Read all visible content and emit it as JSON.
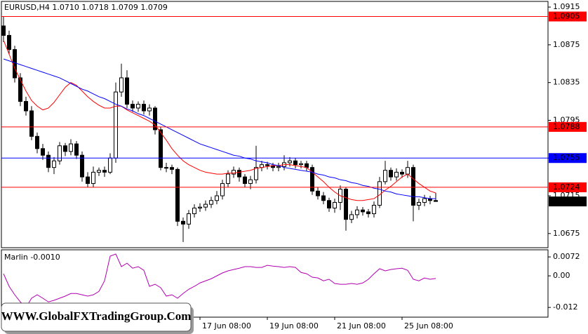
{
  "chart_data": [
    {
      "type": "candlestick",
      "title": "EURUSD,H4  1.0710 1.0718 1.0709 1.0709",
      "categories": [
        null,
        null,
        null,
        null,
        null,
        null,
        null,
        null,
        null,
        null,
        null,
        null,
        null,
        null,
        null,
        null,
        null,
        null,
        null,
        null,
        null,
        null,
        null,
        null,
        null,
        null,
        null,
        null,
        null,
        null,
        null,
        null,
        null,
        null,
        null,
        "17 Jun 08:00",
        null,
        null,
        null,
        null,
        null,
        null,
        null,
        null,
        null,
        null,
        null,
        "19 Jun 08:00",
        null,
        null,
        null,
        null,
        null,
        null,
        null,
        null,
        null,
        null,
        null,
        "21 Jun 08:00",
        null,
        null,
        null,
        null,
        null,
        null,
        null,
        null,
        null,
        null,
        null,
        "25 Jun 08:00",
        null,
        null,
        null,
        null,
        null,
        null
      ],
      "open": [
        1.0895,
        1.0885,
        1.087,
        1.084,
        1.0815,
        1.0805,
        1.0778,
        1.0765,
        1.0758,
        1.0745,
        1.0752,
        1.0768,
        1.0762,
        1.077,
        1.0758,
        1.0735,
        1.0728,
        1.074,
        1.0742,
        1.074,
        1.0755,
        1.0825,
        1.084,
        1.0812,
        1.0808,
        1.0812,
        1.0805,
        1.0808,
        1.0785,
        1.0745,
        1.0745,
        1.0743,
        1.0688,
        1.0685,
        1.0696,
        1.0702,
        1.0703,
        1.0706,
        1.071,
        1.0715,
        1.0728,
        1.0738,
        1.0742,
        1.0735,
        1.0728,
        1.0732,
        1.0745,
        1.0748,
        1.0747,
        1.0745,
        1.0746,
        1.075,
        1.0752,
        1.0748,
        1.0749,
        1.0745,
        1.072,
        1.0715,
        1.071,
        1.0702,
        1.0708,
        1.0722,
        1.069,
        1.0695,
        1.07,
        1.0698,
        1.0696,
        1.0705,
        1.073,
        1.0742,
        1.0735,
        1.074,
        1.0738,
        1.0745,
        1.0705,
        1.0708,
        1.0712,
        1.071
      ],
      "high": [
        1.0905,
        1.089,
        1.0874,
        1.0845,
        1.082,
        1.081,
        1.0782,
        1.077,
        1.0762,
        1.0756,
        1.0772,
        1.0771,
        1.0775,
        1.0773,
        1.0762,
        1.074,
        1.0746,
        1.0745,
        1.0746,
        1.076,
        1.0835,
        1.0855,
        1.0848,
        1.0816,
        1.0815,
        1.0816,
        1.0812,
        1.081,
        1.0788,
        1.075,
        1.0748,
        1.0745,
        1.0692,
        1.07,
        1.0706,
        1.0707,
        1.071,
        1.0714,
        1.072,
        1.0732,
        1.0742,
        1.0746,
        1.0745,
        1.0738,
        1.0736,
        1.0768,
        1.0752,
        1.0751,
        1.075,
        1.075,
        1.0758,
        1.0756,
        1.0755,
        1.0752,
        1.0752,
        1.0748,
        1.0724,
        1.0719,
        1.0713,
        1.0712,
        1.0726,
        1.0724,
        1.0699,
        1.0704,
        1.0703,
        1.0701,
        1.0709,
        1.0735,
        1.0752,
        1.0745,
        1.0744,
        1.0743,
        1.0752,
        1.0748,
        1.0712,
        1.0716,
        1.0715,
        1.0718
      ],
      "low": [
        1.0878,
        1.0865,
        1.0835,
        1.081,
        1.08,
        1.0774,
        1.076,
        1.0753,
        1.074,
        1.0738,
        1.0748,
        1.0757,
        1.0758,
        1.0754,
        1.073,
        1.0724,
        1.0724,
        1.0736,
        1.0735,
        1.0738,
        1.075,
        1.082,
        1.0808,
        1.0804,
        1.0804,
        1.0801,
        1.08,
        1.078,
        1.0742,
        1.074,
        1.0738,
        1.0683,
        1.0666,
        1.068,
        1.0692,
        1.0698,
        1.0699,
        1.0702,
        1.0706,
        1.0711,
        1.0724,
        1.0734,
        1.073,
        1.0724,
        1.0722,
        1.0728,
        1.0741,
        1.0743,
        1.0741,
        1.0741,
        1.0742,
        1.0746,
        1.0744,
        1.0744,
        1.0741,
        1.0716,
        1.0711,
        1.0706,
        1.0698,
        1.0697,
        1.07,
        1.0678,
        1.0686,
        1.0691,
        1.0694,
        1.0692,
        1.0692,
        1.0702,
        1.0727,
        1.0731,
        1.0731,
        1.0734,
        1.0734,
        1.0688,
        1.07,
        1.0704,
        1.0706,
        1.0709
      ],
      "close": [
        1.0885,
        1.087,
        1.084,
        1.0815,
        1.0805,
        1.0778,
        1.0765,
        1.0758,
        1.0745,
        1.0752,
        1.0768,
        1.0762,
        1.077,
        1.0758,
        1.0735,
        1.0728,
        1.074,
        1.0742,
        1.074,
        1.0755,
        1.0825,
        1.084,
        1.0812,
        1.0808,
        1.0812,
        1.0805,
        1.0808,
        1.0785,
        1.0745,
        1.0745,
        1.0743,
        1.0688,
        1.0685,
        1.0696,
        1.0702,
        1.0703,
        1.0706,
        1.071,
        1.0715,
        1.0728,
        1.0738,
        1.0742,
        1.0735,
        1.0728,
        1.0732,
        1.0745,
        1.0748,
        1.0747,
        1.0745,
        1.0746,
        1.075,
        1.0752,
        1.0748,
        1.0749,
        1.0745,
        1.072,
        1.0715,
        1.071,
        1.0702,
        1.0708,
        1.0722,
        1.069,
        1.0695,
        1.07,
        1.0698,
        1.0696,
        1.0705,
        1.073,
        1.0742,
        1.0735,
        1.074,
        1.0738,
        1.0745,
        1.0705,
        1.0708,
        1.0712,
        1.071,
        1.0709
      ],
      "up_color": "#ffffff",
      "down_color": "#000000",
      "overlays": [
        {
          "color": "#ff0000",
          "values": [
            1.088,
            1.0865,
            1.085,
            1.0838,
            1.0826,
            1.0816,
            1.081,
            1.0806,
            1.0808,
            1.0814,
            1.0822,
            1.083,
            1.0835,
            1.0832,
            1.0826,
            1.082,
            1.0815,
            1.0811,
            1.0808,
            1.0808,
            1.081,
            1.081,
            1.0806,
            1.0803,
            1.08,
            1.0797,
            1.0794,
            1.079,
            1.0782,
            1.0774,
            1.0765,
            1.0758,
            1.0752,
            1.0748,
            1.0745,
            1.0742,
            1.074,
            1.0739,
            1.0738,
            1.0738,
            1.0739,
            1.0739,
            1.074,
            1.0741,
            1.0742,
            1.0744,
            1.0745,
            1.0746,
            1.0747,
            1.0747,
            1.0748,
            1.0748,
            1.0747,
            1.0746,
            1.0745,
            1.074,
            1.0735,
            1.073,
            1.0724,
            1.0719,
            1.0715,
            1.0713,
            1.0711,
            1.071,
            1.071,
            1.0711,
            1.0712,
            1.0716,
            1.0721,
            1.0725,
            1.073,
            1.0735,
            1.0738,
            1.0733,
            1.0728,
            1.0724,
            1.072,
            1.0718
          ]
        },
        {
          "color": "#0000ff",
          "values": [
            1.086,
            1.0858,
            1.0856,
            1.0854,
            1.0852,
            1.085,
            1.0848,
            1.0846,
            1.0844,
            1.0842,
            1.084,
            1.0837,
            1.0834,
            1.0831,
            1.0828,
            1.0826,
            1.0823,
            1.082,
            1.0818,
            1.0815,
            1.0812,
            1.081,
            1.0807,
            1.0805,
            1.0802,
            1.08,
            1.0797,
            1.0794,
            1.0791,
            1.0788,
            1.0785,
            1.0782,
            1.0779,
            1.0776,
            1.0773,
            1.077,
            1.0768,
            1.0766,
            1.0764,
            1.0762,
            1.076,
            1.0758,
            1.0757,
            1.0755,
            1.0754,
            1.0752,
            1.0751,
            1.075,
            1.0748,
            1.0747,
            1.0745,
            1.0744,
            1.0743,
            1.0742,
            1.0741,
            1.074,
            1.0738,
            1.0737,
            1.0735,
            1.0734,
            1.0732,
            1.0731,
            1.0729,
            1.0728,
            1.0726,
            1.0725,
            1.0723,
            1.0722,
            1.072,
            1.0719,
            1.0717,
            1.0716,
            1.0715,
            1.0714,
            1.0714,
            1.0713,
            1.0712,
            1.0712
          ]
        }
      ],
      "ylim": [
        1.066,
        1.0921
      ],
      "yticks": [
        1.0915,
        1.0875,
        1.0835,
        1.0795,
        1.0755,
        1.0715,
        1.0675
      ],
      "levels": [
        {
          "value": 1.0905,
          "color": "#ff0000"
        },
        {
          "value": 1.0788,
          "color": "#ff0000"
        },
        {
          "value": 1.0755,
          "color": "#0000ff"
        },
        {
          "value": 1.0724,
          "color": "#ff0000"
        }
      ],
      "current_price": 1.0709
    },
    {
      "type": "line",
      "title": "Marlin -0.0010",
      "color": "#b000b0",
      "values": [
        0.0008,
        -0.004,
        -0.0072,
        -0.0099,
        -0.012,
        -0.0085,
        -0.0072,
        -0.0085,
        -0.0099,
        -0.0093,
        -0.0085,
        -0.0077,
        -0.0067,
        -0.0067,
        -0.0072,
        -0.0077,
        -0.0072,
        -0.0059,
        -0.0019,
        0.0075,
        0.0083,
        0.0035,
        0.0048,
        0.0029,
        0.0035,
        0.0021,
        -0.004,
        -0.0032,
        -0.0045,
        -0.0077,
        -0.0072,
        -0.0085,
        -0.0067,
        -0.0051,
        -0.004,
        -0.0027,
        -0.0019,
        -0.0011,
        0,
        0.0011,
        0.0019,
        0.0024,
        0.0029,
        0.0035,
        0.0035,
        0.0032,
        0.0032,
        0.004,
        0.0037,
        0.0035,
        0.0032,
        0.0035,
        0.0032,
        0.0013,
        0.0008,
        -0.0005,
        -0.0008,
        -0.0019,
        -0.0013,
        -0.0029,
        -0.0032,
        -0.0032,
        -0.0029,
        -0.0032,
        -0.0027,
        -0.0013,
        0.0008,
        0.0027,
        0.0019,
        0.0024,
        0.0027,
        0.0029,
        0.0021,
        -0.0013,
        -0.0019,
        -0.0008,
        -0.0013,
        -0.001
      ],
      "ylim": [
        -0.0157,
        0.0099
      ],
      "yticks": [
        0.0072,
        {
          "value": 0,
          "label": "0.00"
        },
        -0.012
      ]
    }
  ],
  "watermark": "WWW.GlobalFXTradingGroup.Com"
}
